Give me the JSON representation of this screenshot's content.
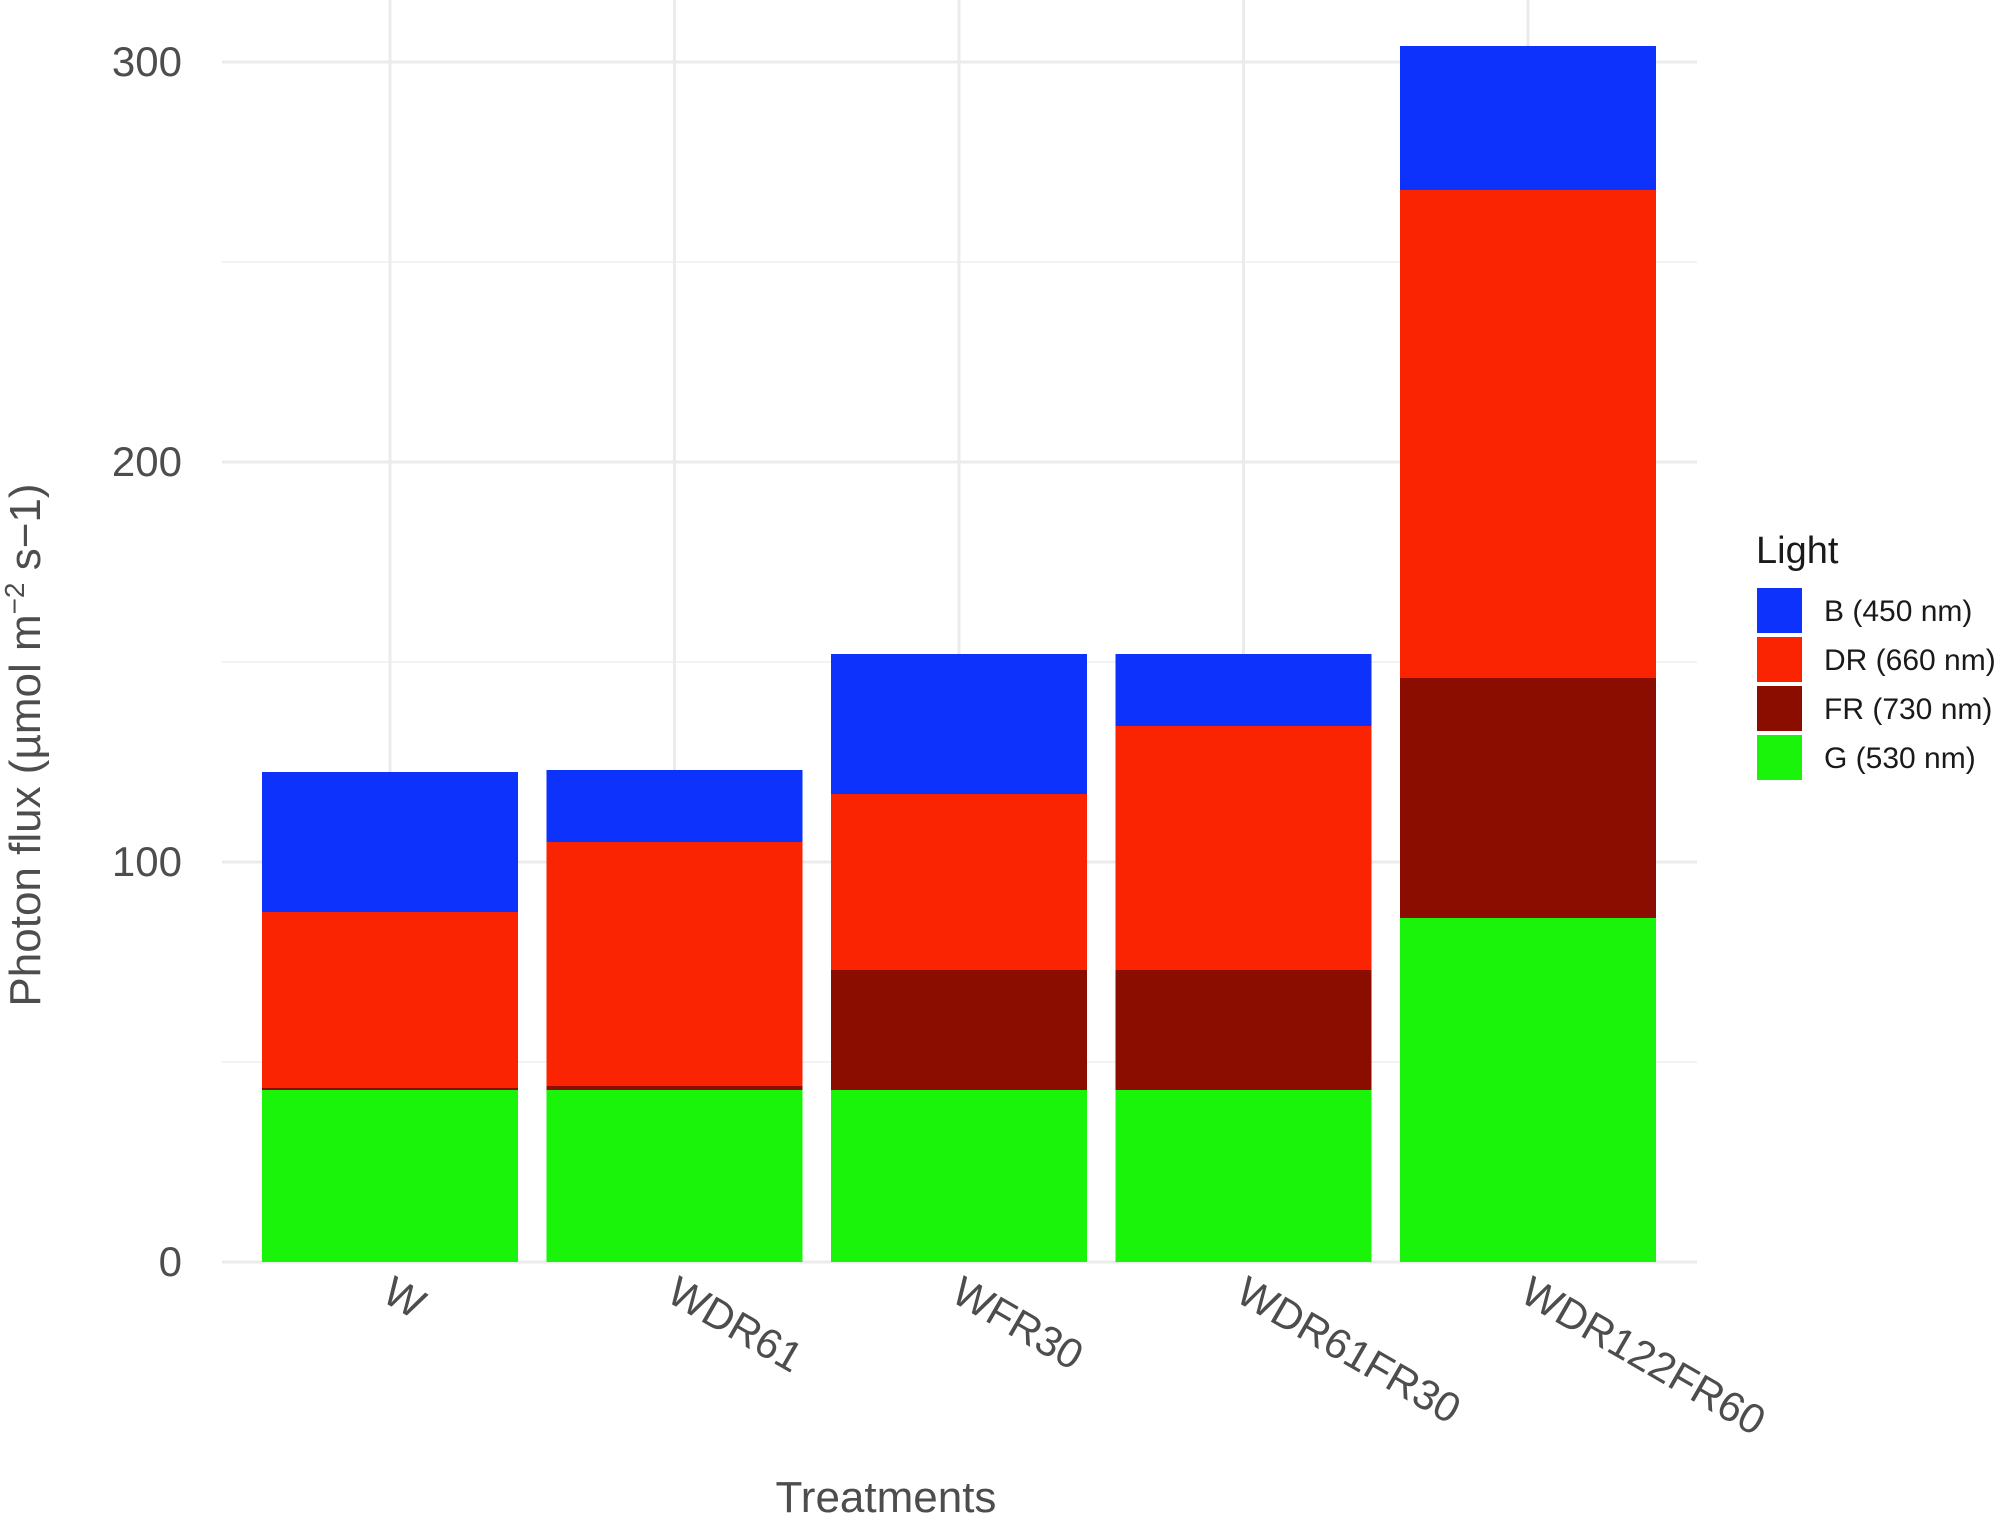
{
  "chart_data": {
    "type": "bar",
    "stacked": true,
    "title": "",
    "xlabel": "Treatments",
    "ylabel": "Photon flux (µmol m",
    "ylabel_superscript": "−2",
    "ylabel_suffix": " s−1)",
    "ylim": [
      0,
      300
    ],
    "yticks": [
      "0",
      "100",
      "200",
      "300"
    ],
    "categories": [
      "W",
      "WDR61",
      "WFR30",
      "WDR61FR30",
      "WDR122FR60"
    ],
    "legend_title": "Light",
    "legend_position": "right",
    "series": [
      {
        "name": "G (530 nm)",
        "color": "#1af40a",
        "values": [
          43,
          43,
          43,
          43,
          86
        ]
      },
      {
        "name": "FR (730 nm)",
        "color": "#8b0d00",
        "values": [
          0.5,
          1,
          30,
          30,
          60
        ]
      },
      {
        "name": "DR (660 nm)",
        "color": "#fb2402",
        "values": [
          44,
          61,
          44,
          61,
          122
        ]
      },
      {
        "name": "B (450 nm)",
        "color": "#0d32fc",
        "values": [
          35,
          18,
          35,
          18,
          36
        ]
      }
    ],
    "legend_order": [
      "B (450 nm)",
      "DR (660 nm)",
      "FR (730 nm)",
      "G (530 nm)"
    ]
  }
}
